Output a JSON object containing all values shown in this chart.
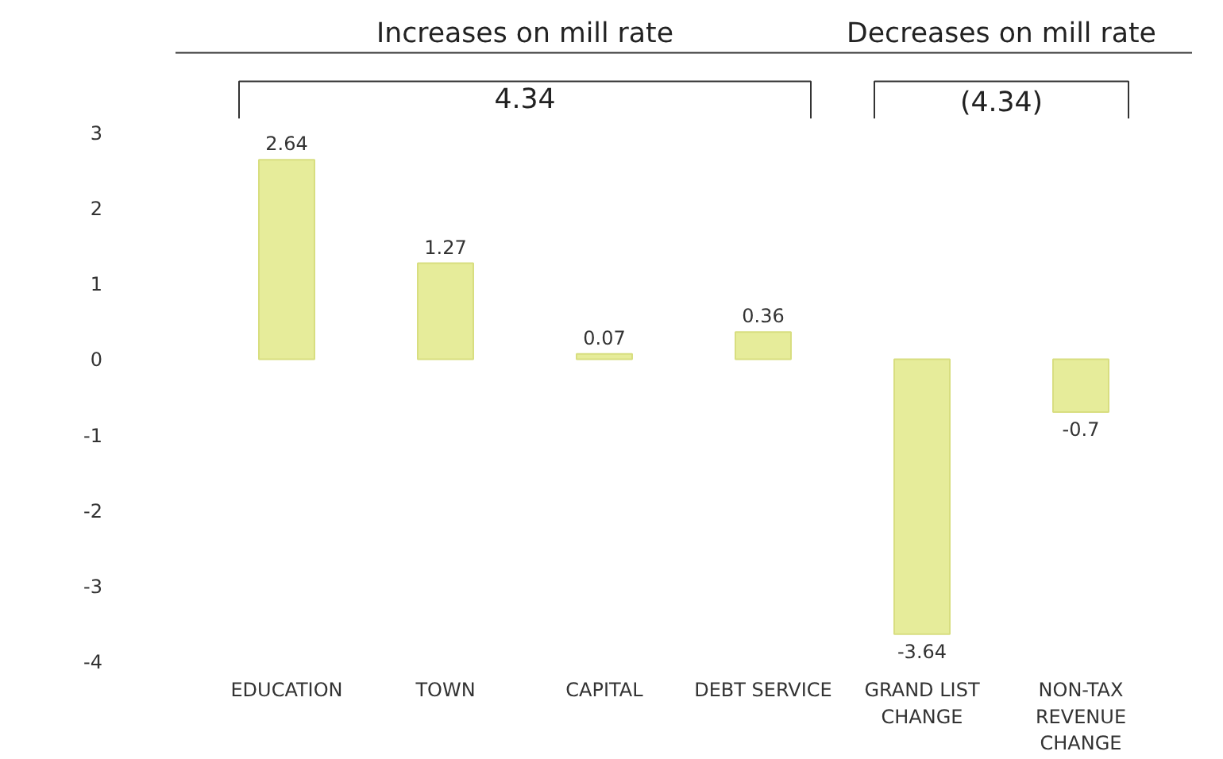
{
  "chart_data": {
    "type": "bar",
    "categories": [
      "EDUCATION",
      "TOWN",
      "CAPITAL",
      "DEBT SERVICE",
      "GRAND LIST CHANGE",
      "NON-TAX REVENUE CHANGE"
    ],
    "values": [
      2.64,
      1.27,
      0.07,
      0.36,
      -3.64,
      -0.7
    ],
    "color": "#e6ec9a",
    "ylim": [
      -4,
      3
    ],
    "yticks": [
      -4,
      -3,
      -2,
      -1,
      0,
      1,
      2,
      3
    ],
    "data_labels": true,
    "grid": false,
    "annotations": [
      "Increases on mill rate",
      "Decreases on mill rate",
      "4.34",
      "(4.34)"
    ]
  }
}
